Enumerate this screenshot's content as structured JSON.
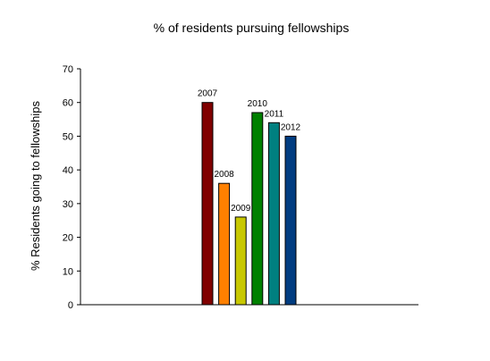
{
  "chart_data": {
    "type": "bar",
    "title": "% of residents pursuing fellowships",
    "xlabel": "",
    "ylabel": "% Residents going to fellowships",
    "ylim": [
      0,
      70
    ],
    "yticks": [
      0,
      10,
      20,
      30,
      40,
      50,
      60,
      70
    ],
    "grid": false,
    "legend": "none",
    "categories": [
      "2007",
      "2008",
      "2009",
      "2010",
      "2011",
      "2012"
    ],
    "values": [
      60,
      36,
      26,
      57,
      54,
      50
    ],
    "colors": [
      "#800000",
      "#ff8000",
      "#c8c800",
      "#008000",
      "#008080",
      "#003c80"
    ]
  }
}
